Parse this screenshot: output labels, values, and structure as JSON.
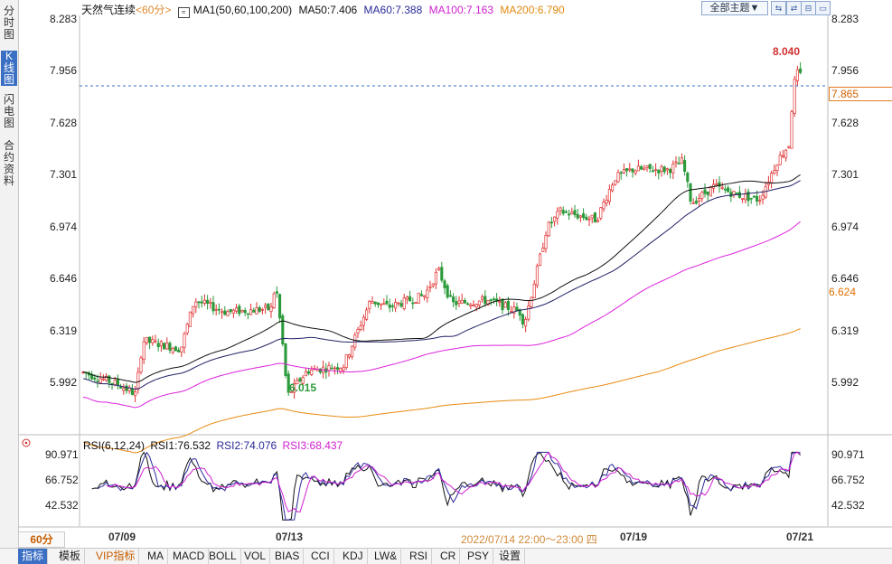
{
  "sidebar": {
    "tabs": [
      {
        "label": "分时图",
        "active": false
      },
      {
        "label": "K线图",
        "active": true
      },
      {
        "label": "闪电图",
        "active": false
      },
      {
        "label": "合约资料",
        "active": false
      }
    ]
  },
  "legend": {
    "symbol": "天然气连续",
    "period": "<60分>",
    "ma_group": "MA1(50,60,100,200)",
    "ma50": "MA50:7.406",
    "ma60": "MA60:7.388",
    "ma100": "MA100:7.163",
    "ma200": "MA200:6.790"
  },
  "toolbar": {
    "theme_label": "全部主题▼",
    "btn_labels": [
      "⇆",
      "⇄",
      "⊟",
      "▭",
      "⊞"
    ]
  },
  "price_axis": [
    "8.283",
    "7.956",
    "7.628",
    "7.301",
    "6.974",
    "6.646",
    "6.319",
    "5.992"
  ],
  "highlights": {
    "high": "8.040",
    "low": "6.015",
    "last": "7.865",
    "ma200_tag": "6.624"
  },
  "rsi": {
    "title": "RSI(6,12,24)",
    "rsi1": "RSI1:76.532",
    "rsi2": "RSI2:74.076",
    "rsi3": "RSI3:68.437",
    "axis": [
      "90.971",
      "66.752",
      "42.532"
    ]
  },
  "x_axis": {
    "labels": [
      "07/09",
      "07/13",
      "07/19",
      "07/21"
    ],
    "hover": "2022/07/14 22:00～23:00 四",
    "period_box": "60分"
  },
  "bottom_tabs": [
    "指标",
    "模板",
    "VIP指标",
    "MA",
    "MACD",
    "BOLL",
    "VOL",
    "BIAS",
    "CCI",
    "KDJ",
    "LW&",
    "RSI",
    "CR",
    "PSY",
    "设置"
  ],
  "colors": {
    "up": "#e03030",
    "down": "#2a9a3a",
    "ma50": "#111111",
    "ma60": "#222266",
    "ma100": "#dd22dd",
    "ma200": "#e88a10",
    "accent": "#3a6fc4"
  },
  "chart_data": {
    "type": "candlestick",
    "title": "天然气连续 60分",
    "ylim": [
      5.85,
      8.32
    ],
    "ma200_level": 6.624,
    "last_price": 7.865
  }
}
